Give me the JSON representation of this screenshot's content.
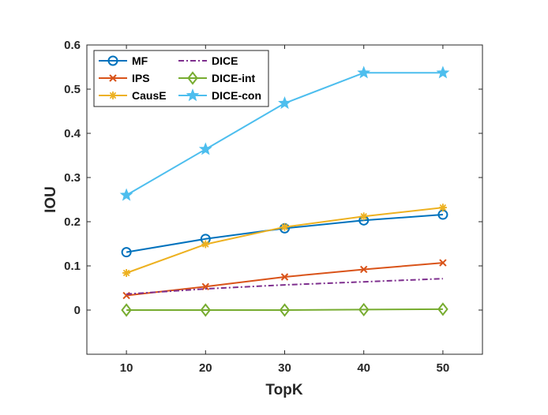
{
  "chart_data": {
    "type": "line",
    "xlabel": "TopK",
    "ylabel": "IOU",
    "x": [
      10,
      20,
      30,
      40,
      50
    ],
    "xlim": [
      5,
      55
    ],
    "ylim": [
      -0.1,
      0.6
    ],
    "xticks": [
      "10",
      "20",
      "30",
      "40",
      "50"
    ],
    "yticks": [
      "0",
      "0.1",
      "0.2",
      "0.3",
      "0.4",
      "0.5",
      "0.6"
    ],
    "grid": false,
    "legend_position": "top-left",
    "series": [
      {
        "name": "MF",
        "color": "#0072BD",
        "marker": "circle",
        "dash": "solid",
        "values": [
          0.131,
          0.161,
          0.185,
          0.203,
          0.216
        ]
      },
      {
        "name": "IPS",
        "color": "#D95319",
        "marker": "x",
        "dash": "solid",
        "values": [
          0.033,
          0.053,
          0.075,
          0.092,
          0.107
        ]
      },
      {
        "name": "CausE",
        "color": "#EDB120",
        "marker": "asterisk",
        "dash": "solid",
        "values": [
          0.084,
          0.149,
          0.188,
          0.212,
          0.232
        ]
      },
      {
        "name": "DICE",
        "color": "#7E2F8E",
        "marker": "none",
        "dash": "dashdot",
        "values": [
          0.036,
          0.048,
          0.057,
          0.064,
          0.071
        ]
      },
      {
        "name": "DICE-int",
        "color": "#77AC30",
        "marker": "diamond",
        "dash": "solid",
        "values": [
          0.0,
          0.0,
          0.0,
          0.001,
          0.002
        ]
      },
      {
        "name": "DICE-con",
        "color": "#4DBEEE",
        "marker": "star",
        "dash": "solid",
        "values": [
          0.26,
          0.364,
          0.468,
          0.537,
          0.537
        ]
      }
    ]
  }
}
